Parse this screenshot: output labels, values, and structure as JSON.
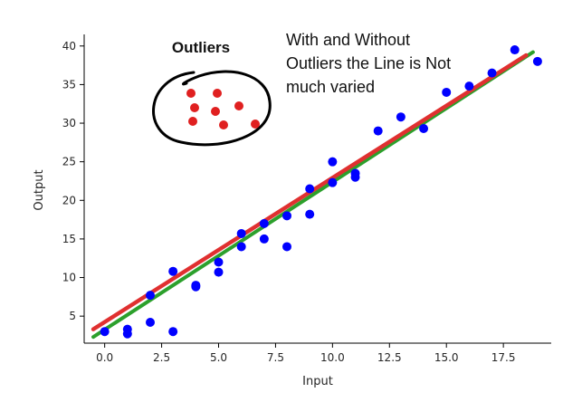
{
  "chart_data": {
    "type": "scatter",
    "xlabel": "Input",
    "ylabel": "Output",
    "xlim": [
      -0.9,
      19.6
    ],
    "ylim": [
      1.5,
      41.5
    ],
    "x_ticks": [
      0.0,
      2.5,
      5.0,
      7.5,
      10.0,
      12.5,
      15.0,
      17.5
    ],
    "x_tick_labels": [
      "0.0",
      "2.5",
      "5.0",
      "7.5",
      "10.0",
      "12.5",
      "15.0",
      "17.5"
    ],
    "y_ticks": [
      5,
      10,
      15,
      20,
      25,
      30,
      35,
      40
    ],
    "y_tick_labels": [
      "5",
      "10",
      "15",
      "20",
      "25",
      "30",
      "35",
      "40"
    ],
    "grid": false,
    "series": [
      {
        "kind": "points",
        "color": "#0000ff",
        "points": [
          [
            0,
            3.0
          ],
          [
            1,
            2.7
          ],
          [
            1,
            3.3
          ],
          [
            2,
            4.2
          ],
          [
            2,
            7.7
          ],
          [
            3,
            3.0
          ],
          [
            3,
            10.8
          ],
          [
            4,
            8.8
          ],
          [
            4,
            9.0
          ],
          [
            5,
            10.7
          ],
          [
            5,
            12.0
          ],
          [
            6,
            14.0
          ],
          [
            6,
            15.7
          ],
          [
            7,
            15.0
          ],
          [
            7,
            17.0
          ],
          [
            8,
            14.0
          ],
          [
            8,
            18.0
          ],
          [
            9,
            18.2
          ],
          [
            9,
            21.5
          ],
          [
            10,
            22.3
          ],
          [
            10,
            25.0
          ],
          [
            11,
            23.0
          ],
          [
            11,
            23.5
          ],
          [
            12,
            29.0
          ],
          [
            13,
            30.8
          ],
          [
            14,
            29.3
          ],
          [
            15,
            34.0
          ],
          [
            16,
            34.8
          ],
          [
            17,
            36.5
          ],
          [
            18,
            39.5
          ],
          [
            19,
            38.0
          ]
        ]
      },
      {
        "kind": "line",
        "color": "#2ca02c",
        "x": [
          -0.5,
          18.8
        ],
        "y": [
          2.3,
          39.2
        ]
      },
      {
        "kind": "line",
        "color": "#e03030",
        "x": [
          -0.5,
          18.5
        ],
        "y": [
          3.3,
          38.8
        ]
      }
    ],
    "annotations": {
      "outliers_label": "Outliers",
      "note_lines": [
        "With and Without",
        "Outliers the Line is Not",
        "much varied"
      ],
      "outlier_points_color": "#e02020"
    }
  }
}
